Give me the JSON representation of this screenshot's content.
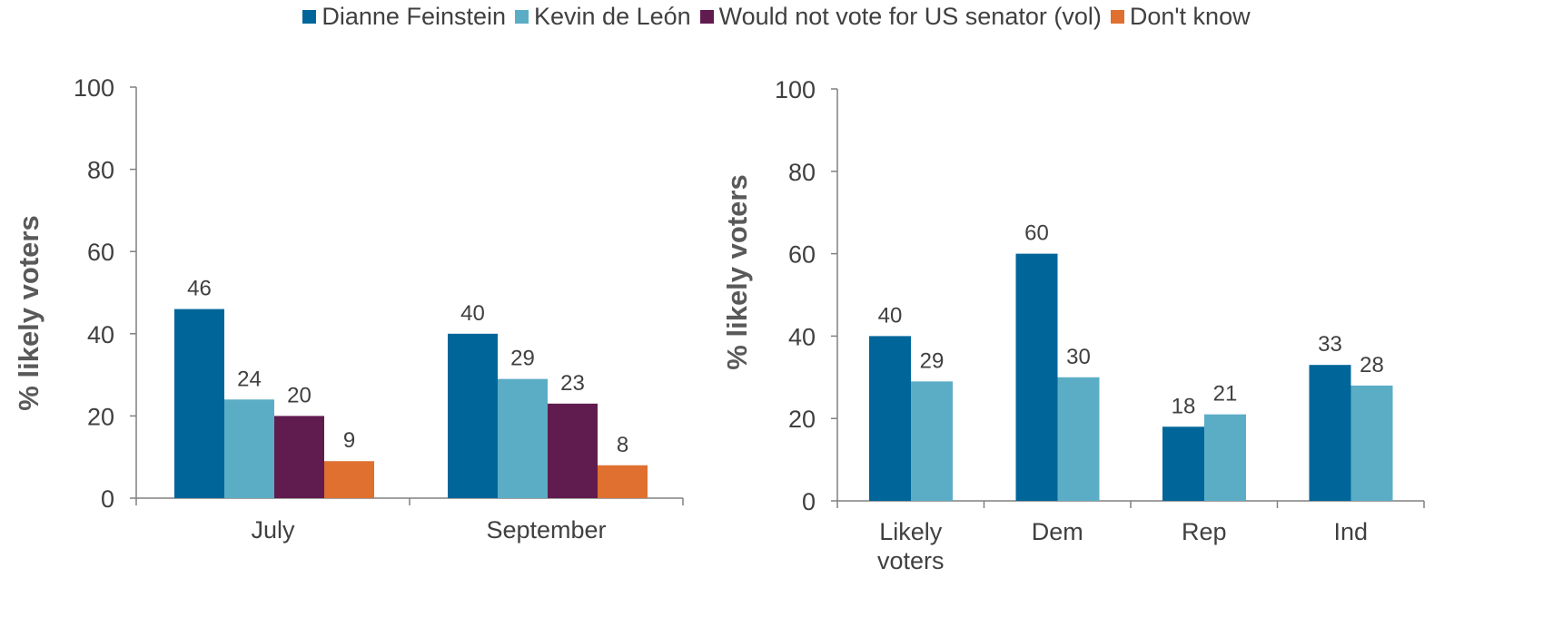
{
  "legend": [
    {
      "label": "Dianne Feinstein",
      "color": "#006699"
    },
    {
      "label": "Kevin de León",
      "color": "#5BADC6"
    },
    {
      "label": "Would not vote for US senator (vol)",
      "color": "#611C4F"
    },
    {
      "label": "Don't know",
      "color": "#E07030"
    }
  ],
  "chart_data": [
    {
      "type": "bar",
      "ylabel": "% likely voters",
      "ylim": [
        0,
        100
      ],
      "yticks": [
        0,
        20,
        40,
        60,
        80,
        100
      ],
      "categories": [
        "July",
        "September"
      ],
      "series": [
        {
          "name": "Dianne Feinstein",
          "color": "#006699",
          "values": [
            46,
            40
          ]
        },
        {
          "name": "Kevin de León",
          "color": "#5BADC6",
          "values": [
            24,
            29
          ]
        },
        {
          "name": "Would not vote for US senator (vol)",
          "color": "#611C4F",
          "values": [
            20,
            23
          ]
        },
        {
          "name": "Don't know",
          "color": "#E07030",
          "values": [
            9,
            8
          ]
        }
      ]
    },
    {
      "type": "bar",
      "ylabel": "% likely voters",
      "ylim": [
        0,
        100
      ],
      "yticks": [
        0,
        20,
        40,
        60,
        80,
        100
      ],
      "categories": [
        [
          "Likely",
          "voters"
        ],
        [
          "Dem"
        ],
        [
          "Rep"
        ],
        [
          "Ind"
        ]
      ],
      "series": [
        {
          "name": "Dianne Feinstein",
          "color": "#006699",
          "values": [
            40,
            60,
            18,
            33
          ]
        },
        {
          "name": "Kevin de León",
          "color": "#5BADC6",
          "values": [
            29,
            30,
            21,
            28
          ]
        }
      ]
    }
  ]
}
